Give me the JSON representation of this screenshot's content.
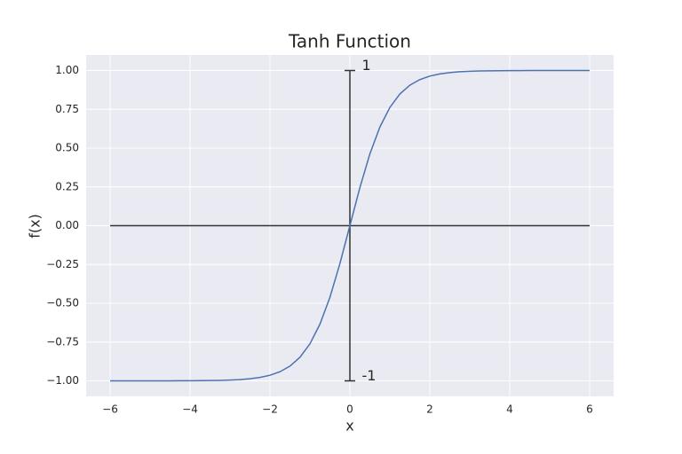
{
  "chart_data": {
    "type": "line",
    "title": "Tanh Function",
    "x_label": "x",
    "y_label": "f(x)",
    "x": [
      -6,
      -5.75,
      -5.5,
      -5.25,
      -5,
      -4.75,
      -4.5,
      -4.25,
      -4,
      -3.75,
      -3.5,
      -3.25,
      -3,
      -2.75,
      -2.5,
      -2.25,
      -2,
      -1.75,
      -1.5,
      -1.25,
      -1,
      -0.75,
      -0.5,
      -0.25,
      0,
      0.25,
      0.5,
      0.75,
      1,
      1.25,
      1.5,
      1.75,
      2,
      2.25,
      2.5,
      2.75,
      3,
      3.25,
      3.5,
      3.75,
      4,
      4.25,
      4.5,
      4.75,
      5,
      5.25,
      5.5,
      5.75,
      6
    ],
    "values": [
      -1,
      -1,
      -1,
      -0.9999,
      -0.9999,
      -0.9999,
      -0.9998,
      -0.9996,
      -0.9993,
      -0.9989,
      -0.9982,
      -0.997,
      -0.9951,
      -0.9919,
      -0.9866,
      -0.978,
      -0.964,
      -0.9414,
      -0.9051,
      -0.8483,
      -0.7616,
      -0.6351,
      -0.4621,
      -0.2449,
      0,
      0.2449,
      0.4621,
      0.6351,
      0.7616,
      0.8483,
      0.9051,
      0.9414,
      0.964,
      0.978,
      0.9866,
      0.9919,
      0.9951,
      0.997,
      0.9982,
      0.9989,
      0.9993,
      0.9996,
      0.9998,
      0.9999,
      0.9999,
      0.9999,
      1,
      1,
      1
    ],
    "color": "#4c72b0",
    "reference_lines": [
      {
        "x": [
          -6,
          6
        ],
        "y": [
          0,
          0
        ],
        "color": "#333333"
      },
      {
        "x": [
          0,
          0
        ],
        "y": [
          -1,
          1
        ],
        "color": "#333333",
        "marker": "_"
      }
    ],
    "annotations": [
      {
        "text": "1",
        "x": 0.3,
        "y": 1.03
      },
      {
        "text": "-1",
        "x": 0.3,
        "y": -0.97
      }
    ],
    "xlim": [
      -6.6,
      6.6
    ],
    "ylim": [
      -1.1,
      1.1
    ],
    "xticks": [
      {
        "value": -6,
        "label": "−6"
      },
      {
        "value": -4,
        "label": "−4"
      },
      {
        "value": -2,
        "label": "−2"
      },
      0,
      2,
      4,
      6
    ],
    "yticks": [
      {
        "value": -1,
        "label": "−1.00"
      },
      {
        "value": -0.75,
        "label": "−0.75"
      },
      {
        "value": -0.5,
        "label": "−0.50"
      },
      {
        "value": -0.25,
        "label": "−0.25"
      },
      {
        "value": 0,
        "label": "0.00"
      },
      {
        "value": 0.25,
        "label": "0.25"
      },
      {
        "value": 0.5,
        "label": "0.50"
      },
      {
        "value": 0.75,
        "label": "0.75"
      },
      {
        "value": 1,
        "label": "1.00"
      }
    ],
    "grid": true,
    "background": "#eaeaf2"
  }
}
